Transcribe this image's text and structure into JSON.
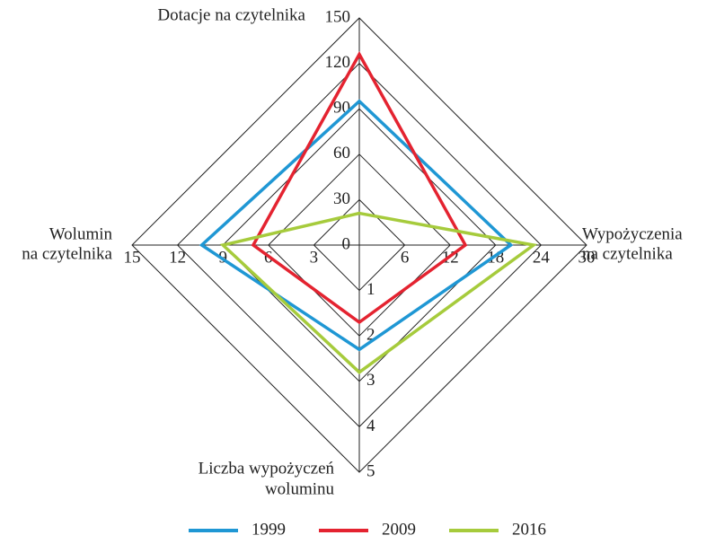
{
  "chart_data": {
    "type": "radar",
    "axes": [
      {
        "label": [
          "Dotacje na czytelnika"
        ],
        "lim": [
          0,
          150
        ],
        "ticks": [
          0,
          30,
          60,
          90,
          120,
          150
        ]
      },
      {
        "label": [
          "Wypożyczenia",
          "na czytelnika"
        ],
        "lim": [
          0,
          30
        ],
        "ticks": [
          6,
          12,
          18,
          24,
          30
        ]
      },
      {
        "label": [
          "Liczba wypożyczeń",
          "woluminu"
        ],
        "lim": [
          0,
          5
        ],
        "ticks": [
          1,
          2,
          3,
          4,
          5
        ]
      },
      {
        "label": [
          "Wolumin",
          "na czytelnika"
        ],
        "lim": [
          0,
          15
        ],
        "ticks": [
          3,
          6,
          9,
          12,
          15
        ]
      }
    ],
    "series": [
      {
        "name": "1999",
        "color": "#1f97d4",
        "values": [
          95,
          20,
          2.3,
          10.4
        ]
      },
      {
        "name": "2009",
        "color": "#e42330",
        "values": [
          126,
          14,
          1.7,
          7
        ]
      },
      {
        "name": "2016",
        "color": "#a6cb3c",
        "values": [
          21,
          23,
          2.8,
          9
        ]
      }
    ],
    "grid": true
  }
}
